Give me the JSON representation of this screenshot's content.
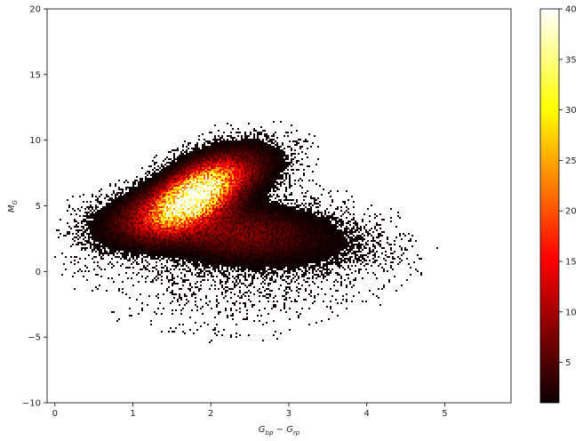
{
  "chart_data": {
    "type": "heatmap",
    "title": "",
    "xlabel": "G_bp − G_rp",
    "ylabel": "M_G",
    "xlim": [
      -0.1,
      5.85
    ],
    "ylim": [
      -10,
      20
    ],
    "xticks": [
      0,
      1,
      2,
      3,
      4,
      5
    ],
    "yticks": [
      -10,
      -5,
      0,
      5,
      10,
      15,
      20
    ],
    "grid": false,
    "colorbar": {
      "colormap": "hot",
      "vmin": 1,
      "vmax": 40,
      "ticks": [
        5,
        10,
        15,
        20,
        25,
        30,
        35,
        40
      ]
    },
    "density_components": [
      {
        "x": 1.8,
        "y": 5.8,
        "sx": 0.32,
        "sy": 1.45,
        "rho": 0.55,
        "weight": 40
      },
      {
        "x": 1.45,
        "y": 4.6,
        "sx": 0.45,
        "sy": 1.3,
        "rho": 0.5,
        "weight": 10
      },
      {
        "x": 2.2,
        "y": 3.0,
        "sx": 0.6,
        "sy": 1.2,
        "rho": -0.2,
        "weight": 6
      },
      {
        "x": 2.3,
        "y": 7.5,
        "sx": 0.35,
        "sy": 1.2,
        "rho": 0.4,
        "weight": 5
      },
      {
        "x": 2.9,
        "y": 2.8,
        "sx": 0.7,
        "sy": 1.5,
        "rho": -0.3,
        "weight": 1.4
      },
      {
        "x": 2.3,
        "y": 0.5,
        "sx": 0.9,
        "sy": 2.5,
        "rho": 0.0,
        "weight": 0.35
      }
    ]
  }
}
